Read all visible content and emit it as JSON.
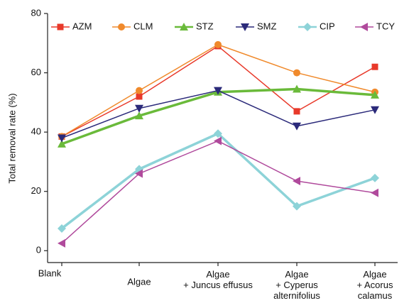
{
  "chart_data": {
    "type": "line",
    "y_label": "Total removal rate (%)",
    "categories": [
      "Blank",
      "Algae",
      "Algae\n+ Juncus effusus",
      "Algae\n+ Cyperus\nalternifolius",
      "Algae\n+ Acorus\ncalamus"
    ],
    "series": [
      {
        "name": "AZM",
        "color": "#e8392a",
        "marker": "square",
        "width": 1.5,
        "values": [
          38.5,
          52,
          69,
          47,
          62
        ]
      },
      {
        "name": "CLM",
        "color": "#f08a2c",
        "marker": "circle",
        "width": 1.5,
        "values": [
          38.5,
          54,
          69.5,
          60,
          53.5
        ]
      },
      {
        "name": "STZ",
        "color": "#6aba3a",
        "marker": "triangle-up",
        "width": 3.5,
        "values": [
          36,
          45.5,
          53.5,
          54.5,
          52.5
        ]
      },
      {
        "name": "SMZ",
        "color": "#2b2a7a",
        "marker": "triangle-down",
        "width": 1.5,
        "values": [
          38,
          48,
          54,
          42,
          47.5
        ]
      },
      {
        "name": "CIP",
        "color": "#8dd3d8",
        "marker": "diamond",
        "width": 3.5,
        "values": [
          7.5,
          27.5,
          39.5,
          15,
          24.5
        ]
      },
      {
        "name": "TCY",
        "color": "#b04a9c",
        "marker": "triangle-left",
        "width": 1.5,
        "values": [
          2.5,
          26,
          37,
          23.5,
          19.5
        ]
      }
    ],
    "ylim": [
      -4,
      80
    ],
    "yticks": [
      0,
      20,
      40,
      60,
      80
    ],
    "legend": "top"
  }
}
